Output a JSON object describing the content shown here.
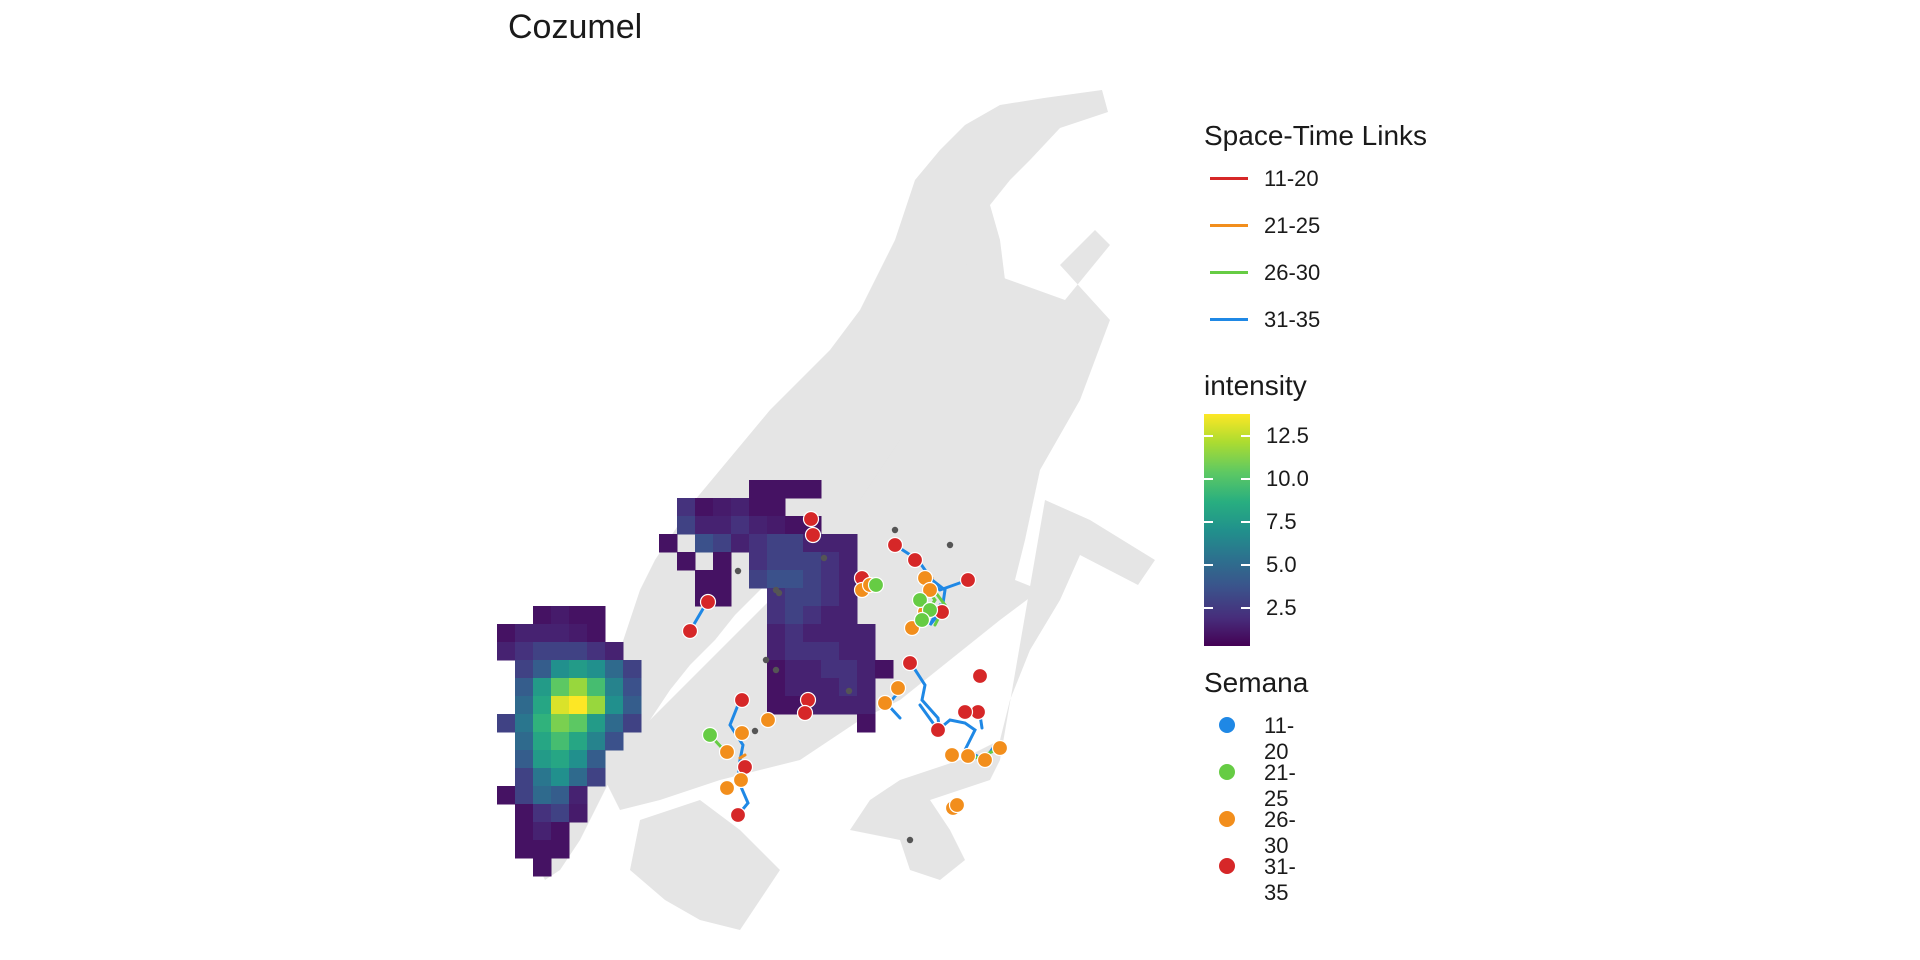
{
  "title": "Cozumel",
  "colors": {
    "land": "#e5e5e5",
    "link_11_20": "#d62728",
    "link_21_25": "#f28e1c",
    "link_26_30": "#66cc44",
    "link_31_35": "#1f88e5",
    "dot_11_20": "#1f88e5",
    "dot_21_25": "#66cc44",
    "dot_26_30": "#f28e1c",
    "dot_31_35": "#d62728"
  },
  "legend": {
    "links": {
      "title": "Space-Time Links",
      "items": [
        {
          "label": "11-20",
          "color": "#d62728"
        },
        {
          "label": "21-25",
          "color": "#f28e1c"
        },
        {
          "label": "26-30",
          "color": "#66cc44"
        },
        {
          "label": "31-35",
          "color": "#1f88e5"
        }
      ]
    },
    "intensity": {
      "title": "intensity",
      "ticks": [
        {
          "label": "12.5",
          "value": 12.5
        },
        {
          "label": "10.0",
          "value": 10.0
        },
        {
          "label": "7.5",
          "value": 7.5
        },
        {
          "label": "5.0",
          "value": 5.0
        },
        {
          "label": "2.5",
          "value": 2.5
        }
      ],
      "min": 0.3,
      "max": 13.8,
      "palette": "viridis"
    },
    "semana": {
      "title": "Semana",
      "items": [
        {
          "label": "11-20",
          "color": "#1f88e5"
        },
        {
          "label": "21-25",
          "color": "#66cc44"
        },
        {
          "label": "26-30",
          "color": "#f28e1c"
        },
        {
          "label": "31-35",
          "color": "#d62728"
        }
      ]
    }
  }
}
